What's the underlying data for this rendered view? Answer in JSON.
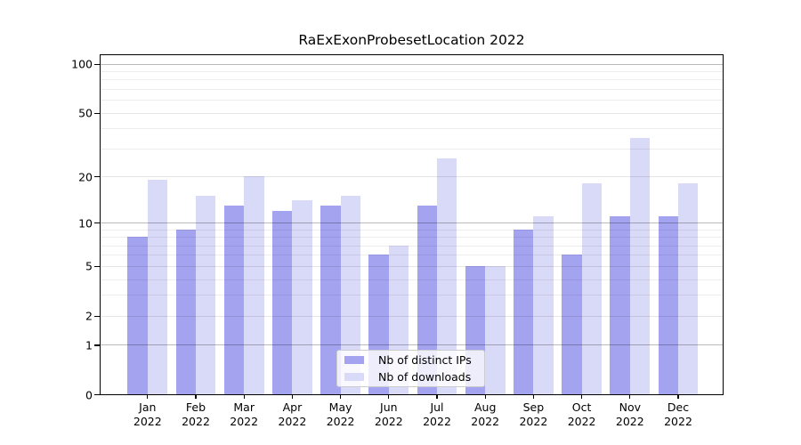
{
  "chart_data": {
    "type": "bar",
    "title": "RaExExonProbesetLocation 2022",
    "categories": [
      {
        "month": "Jan",
        "year": "2022"
      },
      {
        "month": "Feb",
        "year": "2022"
      },
      {
        "month": "Mar",
        "year": "2022"
      },
      {
        "month": "Apr",
        "year": "2022"
      },
      {
        "month": "May",
        "year": "2022"
      },
      {
        "month": "Jun",
        "year": "2022"
      },
      {
        "month": "Jul",
        "year": "2022"
      },
      {
        "month": "Aug",
        "year": "2022"
      },
      {
        "month": "Sep",
        "year": "2022"
      },
      {
        "month": "Oct",
        "year": "2022"
      },
      {
        "month": "Nov",
        "year": "2022"
      },
      {
        "month": "Dec",
        "year": "2022"
      }
    ],
    "series": [
      {
        "name": "Nb of distinct IPs",
        "key": "distinct-ips",
        "color": "#a3a3f0",
        "values": [
          8,
          9,
          13,
          12,
          13,
          6,
          13,
          5,
          9,
          6,
          11,
          11
        ]
      },
      {
        "name": "Nb of downloads",
        "key": "downloads",
        "color": "#d9d9f8",
        "values": [
          19,
          15,
          20,
          14,
          15,
          7,
          26,
          5,
          11,
          18,
          35,
          18
        ]
      }
    ],
    "y_axis": {
      "scale": "log10(1+x)",
      "ylim": [
        0,
        112
      ],
      "ticks": [
        {
          "label": "100",
          "value": 100
        },
        {
          "label": "50",
          "value": 50
        },
        {
          "label": "20",
          "value": 20
        },
        {
          "label": "10",
          "value": 10
        },
        {
          "label": "5",
          "value": 5
        },
        {
          "label": "2",
          "value": 2
        },
        {
          "label": "1",
          "value": 1
        },
        {
          "label": "0",
          "value": 0
        }
      ],
      "major_grid_values": [
        1,
        10,
        100
      ],
      "mid_grid_values": [
        2,
        5,
        20,
        50
      ],
      "minor_grid_values": [
        3,
        4,
        6,
        7,
        8,
        9,
        30,
        40,
        60,
        70,
        80,
        90
      ]
    },
    "grid": true,
    "legend_position": "lower center"
  }
}
